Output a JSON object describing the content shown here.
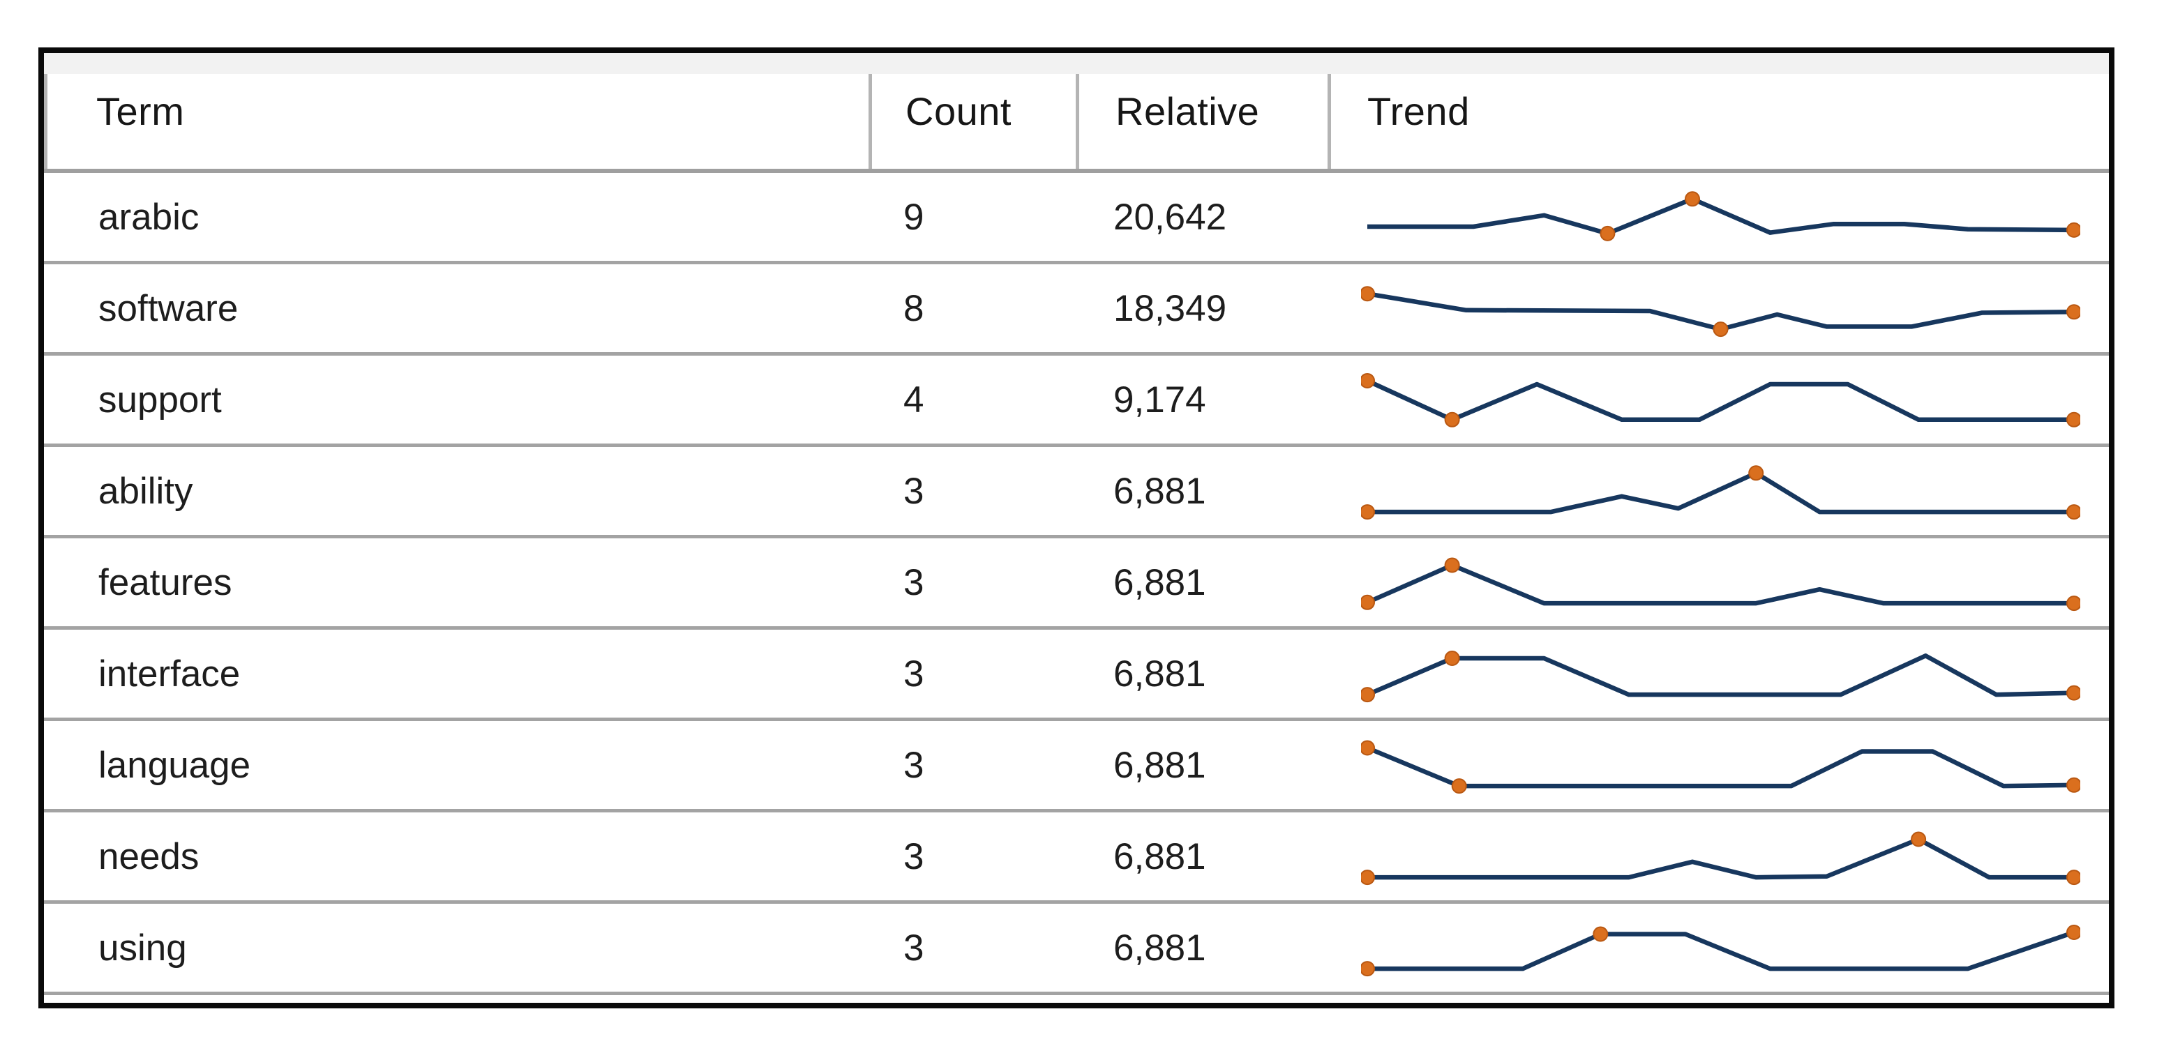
{
  "table": {
    "columns": [
      {
        "key": "term",
        "label": "Term"
      },
      {
        "key": "count",
        "label": "Count"
      },
      {
        "key": "relative",
        "label": "Relative"
      },
      {
        "key": "trend",
        "label": "Trend"
      }
    ],
    "rows": [
      {
        "term": "arabic",
        "count": "9",
        "relative": "20,642",
        "trend": {
          "points": [
            [
              0,
              4.6
            ],
            [
              15,
              4.6
            ],
            [
              25,
              5.9
            ],
            [
              34,
              3.8
            ],
            [
              46,
              7.8
            ],
            [
              57,
              3.9
            ],
            [
              66,
              4.9
            ],
            [
              76,
              4.9
            ],
            [
              85,
              4.3
            ],
            [
              100,
              4.2
            ]
          ],
          "dots": [
            3,
            4,
            9
          ]
        }
      },
      {
        "term": "software",
        "count": "8",
        "relative": "18,349",
        "trend": {
          "points": [
            [
              0,
              7.4
            ],
            [
              14,
              5.5
            ],
            [
              40,
              5.4
            ],
            [
              50,
              3.3
            ],
            [
              58,
              5.0
            ],
            [
              65,
              3.6
            ],
            [
              77,
              3.6
            ],
            [
              87,
              5.2
            ],
            [
              100,
              5.3
            ]
          ],
          "dots": [
            0,
            3,
            8
          ]
        }
      },
      {
        "term": "support",
        "count": "4",
        "relative": "9,174",
        "trend": {
          "points": [
            [
              0,
              7.9
            ],
            [
              12,
              3.4
            ],
            [
              24,
              7.5
            ],
            [
              36,
              3.4
            ],
            [
              47,
              3.4
            ],
            [
              57,
              7.5
            ],
            [
              68,
              7.5
            ],
            [
              78,
              3.4
            ],
            [
              100,
              3.4
            ]
          ],
          "dots": [
            0,
            1,
            8
          ]
        }
      },
      {
        "term": "ability",
        "count": "3",
        "relative": "6,881",
        "trend": {
          "points": [
            [
              0,
              3.3
            ],
            [
              26,
              3.3
            ],
            [
              36,
              5.1
            ],
            [
              44,
              3.7
            ],
            [
              55,
              7.8
            ],
            [
              64,
              3.3
            ],
            [
              100,
              3.3
            ]
          ],
          "dots": [
            0,
            4,
            6
          ]
        }
      },
      {
        "term": "features",
        "count": "3",
        "relative": "6,881",
        "trend": {
          "points": [
            [
              0,
              3.4
            ],
            [
              12,
              7.7
            ],
            [
              25,
              3.3
            ],
            [
              55,
              3.3
            ],
            [
              64,
              4.9
            ],
            [
              73,
              3.3
            ],
            [
              100,
              3.3
            ]
          ],
          "dots": [
            0,
            1,
            6
          ]
        }
      },
      {
        "term": "interface",
        "count": "3",
        "relative": "6,881",
        "trend": {
          "points": [
            [
              0,
              3.3
            ],
            [
              12,
              7.5
            ],
            [
              25,
              7.5
            ],
            [
              37,
              3.3
            ],
            [
              67,
              3.3
            ],
            [
              79,
              7.8
            ],
            [
              89,
              3.3
            ],
            [
              100,
              3.5
            ]
          ],
          "dots": [
            0,
            1,
            7
          ]
        }
      },
      {
        "term": "language",
        "count": "3",
        "relative": "6,881",
        "trend": {
          "points": [
            [
              0,
              7.7
            ],
            [
              13,
              3.3
            ],
            [
              60,
              3.3
            ],
            [
              70,
              7.3
            ],
            [
              80,
              7.3
            ],
            [
              90,
              3.3
            ],
            [
              100,
              3.4
            ]
          ],
          "dots": [
            0,
            1,
            6
          ]
        }
      },
      {
        "term": "needs",
        "count": "3",
        "relative": "6,881",
        "trend": {
          "points": [
            [
              0,
              3.3
            ],
            [
              37,
              3.3
            ],
            [
              46,
              5.1
            ],
            [
              55,
              3.3
            ],
            [
              65,
              3.4
            ],
            [
              78,
              7.7
            ],
            [
              88,
              3.3
            ],
            [
              100,
              3.3
            ]
          ],
          "dots": [
            0,
            5,
            7
          ]
        }
      },
      {
        "term": "using",
        "count": "3",
        "relative": "6,881",
        "trend": {
          "points": [
            [
              0,
              3.3
            ],
            [
              22,
              3.3
            ],
            [
              33,
              7.3
            ],
            [
              45,
              7.3
            ],
            [
              57,
              3.3
            ],
            [
              85,
              3.3
            ],
            [
              100,
              7.5
            ]
          ],
          "dots": [
            0,
            2,
            6
          ]
        }
      }
    ]
  },
  "colors": {
    "spark_line": "#17375e",
    "spark_dot_fill": "#da6f1e",
    "spark_dot_stroke": "#b95812",
    "row_separator": "#a3a3a3",
    "header_separator": "#b4b4b4",
    "frame_border": "#0a0a0a",
    "header_strip": "#f2f2f2"
  }
}
